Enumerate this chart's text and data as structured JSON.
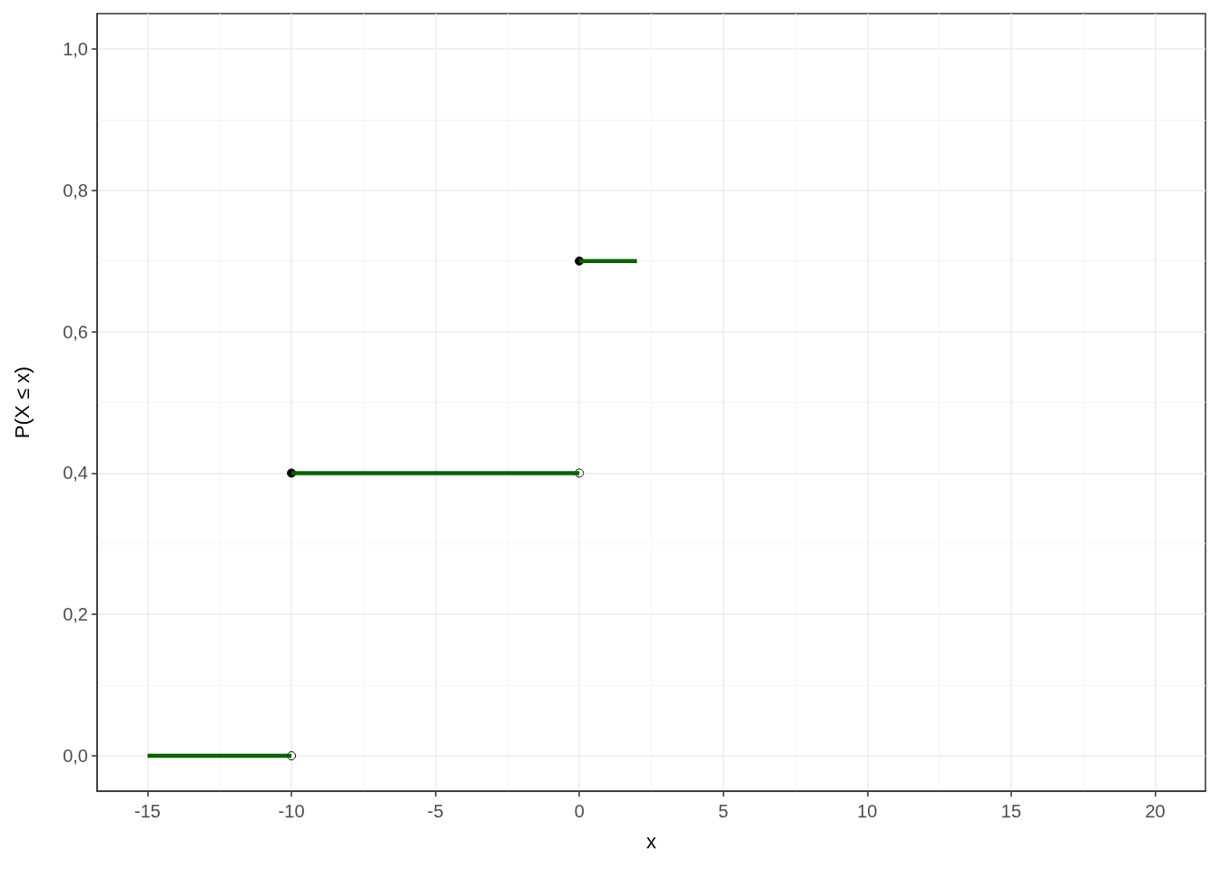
{
  "chart_data": {
    "type": "line",
    "xlabel": "x",
    "ylabel": "P(X ≤ x)",
    "xlim": [
      -16.75,
      21.75
    ],
    "xticks": [
      -15,
      -10,
      -5,
      0,
      5,
      10,
      15,
      20
    ],
    "ylim": [
      -0.05,
      1.05
    ],
    "yticks": [
      {
        "value": 0,
        "label": "0,0"
      },
      {
        "value": 0.2,
        "label": "0,2"
      },
      {
        "value": 0.4,
        "label": "0,4"
      },
      {
        "value": 0.6,
        "label": "0,6"
      },
      {
        "value": 0.8,
        "label": "0,8"
      },
      {
        "value": 1,
        "label": "1,0"
      }
    ],
    "grid": true,
    "series": [
      {
        "color": "#006400",
        "marker": "none",
        "x": [
          -15,
          -10
        ],
        "values": [
          0,
          0
        ]
      },
      {
        "color": "#006400",
        "marker": "none",
        "x": [
          -10,
          0
        ],
        "values": [
          0.4,
          0.4
        ]
      },
      {
        "color": "#006400",
        "marker": "none",
        "x": [
          0,
          2
        ],
        "values": [
          0.7,
          0.7
        ]
      },
      {
        "type": "scatter",
        "color": "#000000",
        "marker": "circle",
        "x": [
          -10,
          0
        ],
        "values": [
          0.4,
          0.7
        ]
      },
      {
        "type": "scatter",
        "color": "#ffffff",
        "marker": "circle",
        "x": [
          -10,
          0
        ],
        "values": [
          0,
          0.4
        ]
      }
    ]
  }
}
